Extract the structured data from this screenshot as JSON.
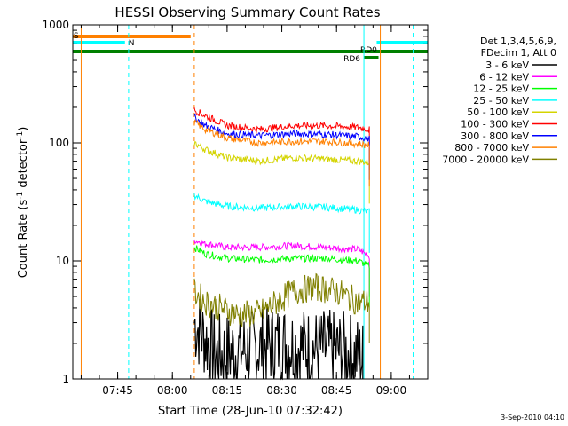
{
  "chart_data": {
    "type": "line",
    "title": "HESSI Observing Summary Count Rates",
    "xlabel": "Start Time (28-Jun-10 07:32:42)",
    "ylabel": "Count Rate (s",
    "ylabel_sup1": "-1",
    "ylabel_mid": " detector",
    "ylabel_sup2": "-1",
    "ylabel_end": ")",
    "y_scale": "log",
    "ylim": [
      1,
      1000
    ],
    "xlim": [
      "07:32:42",
      "09:10:00"
    ],
    "x_ticks": [
      "07:45",
      "08:00",
      "08:15",
      "08:30",
      "08:45",
      "09:00"
    ],
    "y_ticks": [
      "1",
      "10",
      "100",
      "1000"
    ],
    "legend_header": [
      "Det 1,3,4,5,6,9,",
      "FDecim 1, Att 0"
    ],
    "series": [
      {
        "name": "3 - 6 keV",
        "color": "#000000",
        "values": [
          [
            8.1,
            3.0
          ],
          [
            8.2,
            1.6
          ],
          [
            8.35,
            1.8
          ],
          [
            8.5,
            2.0
          ],
          [
            8.65,
            1.8
          ],
          [
            8.8,
            1.7
          ],
          [
            8.87,
            1.5
          ]
        ]
      },
      {
        "name": "6 - 12 keV",
        "color": "#ff00ff",
        "values": [
          [
            8.1,
            15
          ],
          [
            8.15,
            14
          ],
          [
            8.25,
            13
          ],
          [
            8.4,
            13
          ],
          [
            8.55,
            13.5
          ],
          [
            8.7,
            13
          ],
          [
            8.85,
            12.5
          ],
          [
            8.9,
            11
          ]
        ]
      },
      {
        "name": "12 - 25 keV",
        "color": "#00ff00",
        "values": [
          [
            8.1,
            13
          ],
          [
            8.15,
            11.5
          ],
          [
            8.25,
            10.5
          ],
          [
            8.4,
            10.2
          ],
          [
            8.55,
            10.5
          ],
          [
            8.7,
            10.5
          ],
          [
            8.85,
            10
          ],
          [
            8.9,
            9
          ]
        ]
      },
      {
        "name": "25 - 50 keV",
        "color": "#00ffff",
        "values": [
          [
            8.1,
            36
          ],
          [
            8.15,
            32
          ],
          [
            8.25,
            29
          ],
          [
            8.4,
            28
          ],
          [
            8.55,
            29
          ],
          [
            8.7,
            28.5
          ],
          [
            8.85,
            27
          ],
          [
            8.9,
            26
          ]
        ]
      },
      {
        "name": "50 - 100 keV",
        "color": "#d4d400",
        "values": [
          [
            8.1,
            100
          ],
          [
            8.15,
            88
          ],
          [
            8.25,
            75
          ],
          [
            8.4,
            70
          ],
          [
            8.55,
            75
          ],
          [
            8.7,
            73
          ],
          [
            8.85,
            70
          ],
          [
            8.9,
            68
          ]
        ]
      },
      {
        "name": "100 - 300 keV",
        "color": "#ff0000",
        "values": [
          [
            8.1,
            190
          ],
          [
            8.15,
            170
          ],
          [
            8.25,
            140
          ],
          [
            8.4,
            130
          ],
          [
            8.55,
            140
          ],
          [
            8.7,
            140
          ],
          [
            8.85,
            135
          ],
          [
            8.9,
            130
          ]
        ]
      },
      {
        "name": "300 - 800 keV",
        "color": "#0000ff",
        "values": [
          [
            8.1,
            165
          ],
          [
            8.15,
            140
          ],
          [
            8.25,
            120
          ],
          [
            8.4,
            115
          ],
          [
            8.55,
            120
          ],
          [
            8.7,
            118
          ],
          [
            8.85,
            113
          ],
          [
            8.9,
            108
          ]
        ]
      },
      {
        "name": "800 - 7000 keV",
        "color": "#ff8000",
        "values": [
          [
            8.1,
            150
          ],
          [
            8.15,
            130
          ],
          [
            8.25,
            110
          ],
          [
            8.4,
            100
          ],
          [
            8.55,
            103
          ],
          [
            8.7,
            103
          ],
          [
            8.85,
            98
          ],
          [
            8.9,
            95
          ]
        ]
      },
      {
        "name": "7000 - 20000 keV",
        "color": "#808000",
        "values": [
          [
            8.1,
            5.5
          ],
          [
            8.15,
            4.5
          ],
          [
            8.3,
            3.5
          ],
          [
            8.4,
            3.6
          ],
          [
            8.55,
            5.5
          ],
          [
            8.65,
            6.0
          ],
          [
            8.75,
            5.5
          ],
          [
            8.85,
            4.5
          ],
          [
            8.9,
            4.5
          ]
        ]
      }
    ],
    "flag_bars": [
      {
        "label": "S",
        "color": "#ff8000",
        "segments": [
          [
            "07:32:42",
            "08:05:00"
          ]
        ]
      },
      {
        "label": "N",
        "color": "#00ffff",
        "segments": [
          [
            "07:32:42",
            "07:47:00"
          ],
          [
            "08:56:00",
            "09:10:00"
          ]
        ]
      },
      {
        "label": "RD0",
        "color": "#008000",
        "segments": [
          [
            "07:32:42",
            "09:10:00"
          ]
        ]
      },
      {
        "label": "RD6",
        "color": "#008000",
        "segments": [
          [
            "08:52:30",
            "08:56:30"
          ]
        ]
      }
    ],
    "vlines": [
      {
        "time": "07:35:00",
        "color": "#ff8000",
        "style": "solid"
      },
      {
        "time": "07:48:00",
        "color": "#00ffff",
        "style": "dashed"
      },
      {
        "time": "08:06:00",
        "color": "#ff8000",
        "style": "dashed"
      },
      {
        "time": "08:52:30",
        "color": "#00ffff",
        "style": "solid"
      },
      {
        "time": "08:57:00",
        "color": "#ff8000",
        "style": "solid"
      },
      {
        "time": "09:06:00",
        "color": "#00ffff",
        "style": "dashed"
      }
    ],
    "grid": false,
    "legend_placement": "right"
  },
  "footer": {
    "stamp": "3-Sep-2010 04:10"
  }
}
